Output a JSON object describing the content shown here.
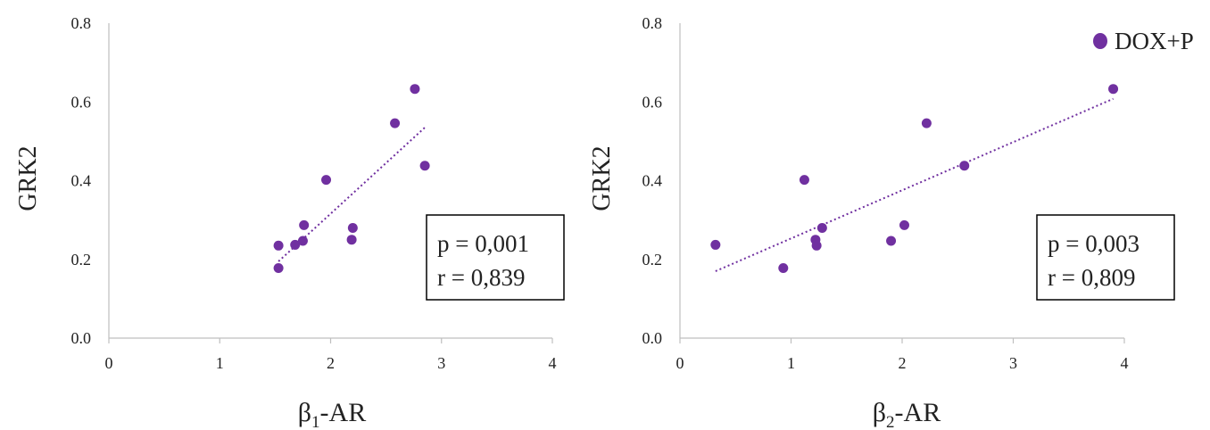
{
  "colors": {
    "series": "#7030a0",
    "axis": "#bfbfbf",
    "text": "#222222"
  },
  "legend": {
    "label": "DOX+P",
    "placement": "top-right"
  },
  "chart_data": [
    {
      "type": "scatter",
      "title": "",
      "xlabel": {
        "main": "β",
        "sub": "1",
        "rest": "-AR"
      },
      "ylabel": "GRK2",
      "xlim": [
        0,
        4
      ],
      "ylim": [
        0,
        0.8
      ],
      "xticks": [
        "0",
        "1",
        "2",
        "3",
        "4"
      ],
      "yticks": [
        "0.0",
        "0.2",
        "0.4",
        "0.6",
        "0.8"
      ],
      "grid": false,
      "series": [
        {
          "name": "DOX+P",
          "x": [
            1.53,
            1.53,
            1.68,
            1.75,
            1.76,
            1.96,
            2.19,
            2.2,
            2.58,
            2.76,
            2.85
          ],
          "y": [
            0.235,
            0.178,
            0.237,
            0.247,
            0.287,
            0.402,
            0.25,
            0.28,
            0.546,
            0.633,
            0.438
          ]
        }
      ],
      "trendline": {
        "x": [
          1.53,
          2.85
        ],
        "y": [
          0.195,
          0.535
        ]
      },
      "stats": {
        "p": "p = 0,001",
        "r": "r = 0,839"
      }
    },
    {
      "type": "scatter",
      "title": "",
      "xlabel": {
        "main": "β",
        "sub": "2",
        "rest": "-AR"
      },
      "ylabel": "GRK2",
      "xlim": [
        0,
        4
      ],
      "ylim": [
        0,
        0.8
      ],
      "xticks": [
        "0",
        "1",
        "2",
        "3",
        "4"
      ],
      "yticks": [
        "0.0",
        "0.2",
        "0.4",
        "0.6",
        "0.8"
      ],
      "grid": false,
      "series": [
        {
          "name": "DOX+P",
          "x": [
            0.32,
            0.93,
            1.12,
            1.22,
            1.23,
            1.28,
            1.9,
            2.02,
            2.22,
            2.56,
            3.9
          ],
          "y": [
            0.237,
            0.178,
            0.402,
            0.25,
            0.235,
            0.28,
            0.247,
            0.287,
            0.546,
            0.438,
            0.633
          ]
        }
      ],
      "trendline": {
        "x": [
          0.32,
          3.9
        ],
        "y": [
          0.17,
          0.608
        ]
      },
      "stats": {
        "p": "p = 0,003",
        "r": "r = 0,809"
      }
    }
  ]
}
